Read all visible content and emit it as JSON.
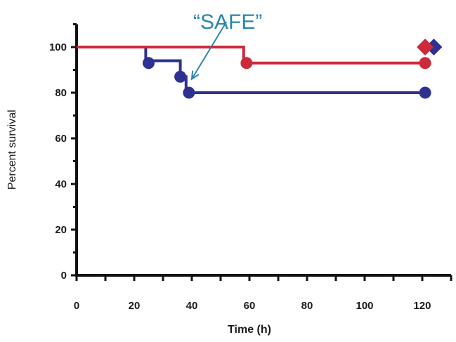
{
  "chart_data": {
    "type": "line",
    "step": true,
    "xlabel": "Time (h)",
    "ylabel": "Percent survival",
    "xlim": [
      0,
      130
    ],
    "ylim": [
      0,
      110
    ],
    "xticks": [
      0,
      20,
      40,
      60,
      80,
      100,
      120
    ],
    "yticks": [
      0,
      20,
      40,
      60,
      80,
      100
    ],
    "grid": false,
    "legend": "none",
    "series": [
      {
        "color": "#cc2a3a",
        "steps": [
          [
            0,
            100
          ],
          [
            58,
            100
          ],
          [
            58,
            93
          ],
          [
            121,
            93
          ]
        ],
        "markers": [
          [
            59,
            93
          ],
          [
            121,
            93
          ]
        ],
        "end_diamond": [
          121,
          100
        ]
      },
      {
        "color": "#2e3192",
        "steps": [
          [
            0,
            100
          ],
          [
            24,
            100
          ],
          [
            24,
            94
          ],
          [
            36,
            94
          ],
          [
            36,
            87
          ],
          [
            38,
            87
          ],
          [
            38,
            80
          ],
          [
            121,
            80
          ]
        ],
        "markers": [
          [
            25,
            93
          ],
          [
            36,
            87
          ],
          [
            39,
            80
          ],
          [
            121,
            80
          ]
        ],
        "end_diamond": [
          124,
          100
        ]
      }
    ],
    "annotation": {
      "text": "“SAFE”",
      "arrow_from": [
        52,
        111
      ],
      "arrow_to": [
        40,
        86
      ]
    }
  }
}
